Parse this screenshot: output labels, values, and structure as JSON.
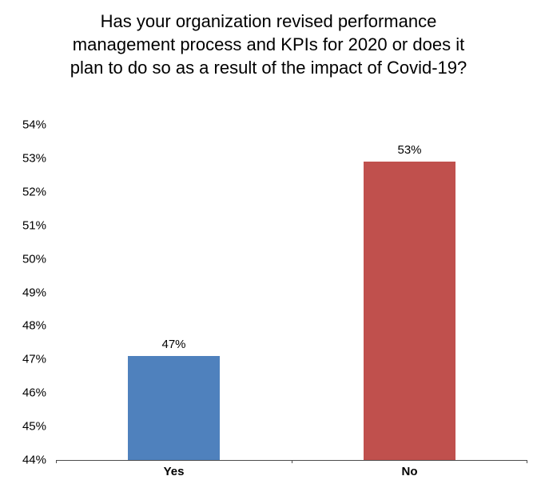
{
  "chart_data": {
    "type": "bar",
    "title": "Has your organization revised performance management process and KPIs for 2020 or does it plan to do so as a result of the impact of Covid-19?",
    "categories": [
      "Yes",
      "No"
    ],
    "values": [
      47.1,
      52.9
    ],
    "data_labels": [
      "47%",
      "53%"
    ],
    "bar_colors": [
      "#4f81bd",
      "#c0504d"
    ],
    "xlabel": "",
    "ylabel": "",
    "ylim": [
      44,
      54
    ],
    "ytick_step": 1,
    "ytick_labels": [
      "44%",
      "45%",
      "46%",
      "47%",
      "48%",
      "49%",
      "50%",
      "51%",
      "52%",
      "53%",
      "54%"
    ],
    "grid": false,
    "legend": false,
    "axis_color": "#4d4d4d"
  }
}
